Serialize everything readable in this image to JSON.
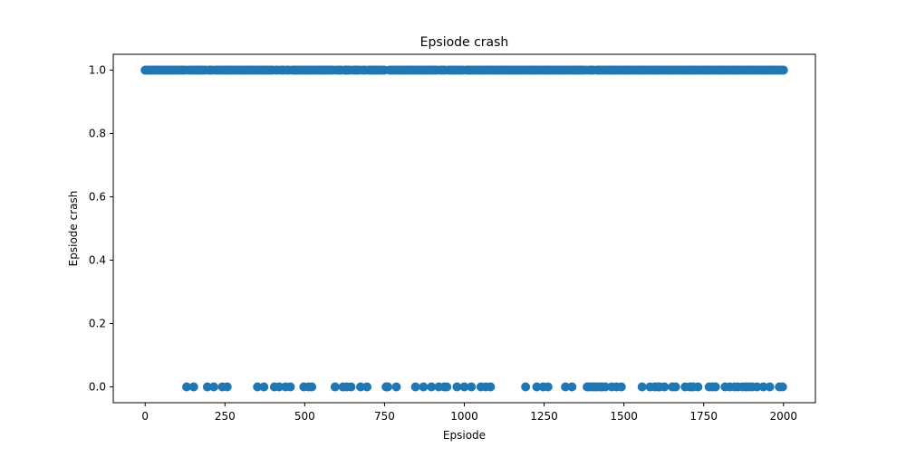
{
  "chart_data": {
    "type": "scatter",
    "title": "Epsiode crash",
    "xlabel": "Epsiode",
    "ylabel": "Epsiode crash",
    "xlim": [
      -100,
      2100
    ],
    "ylim": [
      -0.05,
      1.05
    ],
    "xticks": [
      0,
      250,
      500,
      750,
      1000,
      1250,
      1500,
      1750,
      2000
    ],
    "yticks": [
      0.0,
      0.2,
      0.4,
      0.6,
      0.8,
      1.0
    ],
    "xtick_labels": [
      "0",
      "250",
      "500",
      "750",
      "1000",
      "1250",
      "1500",
      "1750",
      "2000"
    ],
    "ytick_labels": [
      "0.0",
      "0.2",
      "0.4",
      "0.6",
      "0.8",
      "1.0"
    ],
    "grid": false,
    "marker_color": "#1f77b4",
    "series": [
      {
        "values_crash_1_x_range": [
          0,
          2000
        ],
        "crash_0_episodes": [
          130,
          152,
          195,
          215,
          242,
          257,
          352,
          372,
          405,
          420,
          440,
          455,
          497,
          512,
          522,
          595,
          620,
          632,
          645,
          675,
          695,
          755,
          760,
          787,
          847,
          872,
          897,
          920,
          937,
          945,
          977,
          1000,
          1022,
          1052,
          1067,
          1082,
          1192,
          1227,
          1247,
          1262,
          1317,
          1337,
          1385,
          1392,
          1402,
          1410,
          1417,
          1427,
          1432,
          1442,
          1462,
          1477,
          1492,
          1557,
          1582,
          1597,
          1607,
          1612,
          1627,
          1652,
          1662,
          1692,
          1707,
          1717,
          1732,
          1767,
          1777,
          1787,
          1817,
          1832,
          1847,
          1857,
          1872,
          1882,
          1892,
          1902,
          1917,
          1937,
          1957,
          1987,
          1997
        ]
      }
    ]
  }
}
